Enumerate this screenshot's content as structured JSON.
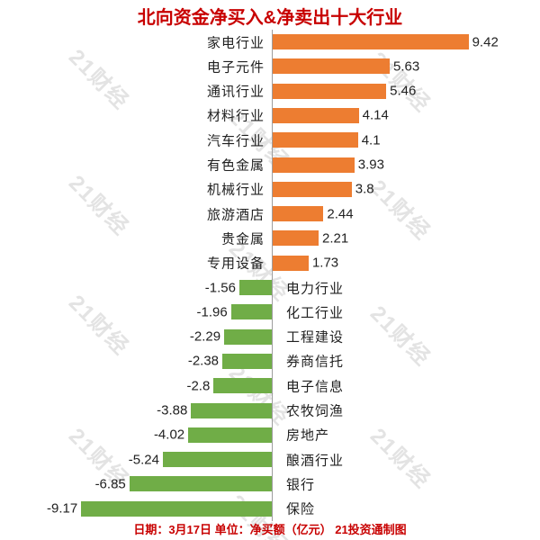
{
  "title": "北向资金净买入&净卖出十大行业",
  "footer": "日期：3月17日 单位：净买额（亿元） 21投资通制图",
  "watermark_text": "21财经",
  "colors": {
    "positive_bar": "#ed7d31",
    "negative_bar": "#70ad47",
    "title_red": "#c80000",
    "axis_gray": "#9e9e9e",
    "label_dark": "#212121",
    "watermark_gray": "#e3e3e3"
  },
  "chart_data": {
    "type": "bar",
    "orientation": "horizontal-diverging",
    "title": "北向资金净买入&净卖出十大行业",
    "xlabel": "净买额（亿元）",
    "ylabel": "",
    "xlim": [
      -9.17,
      9.42
    ],
    "grid": false,
    "legend": "none",
    "categories": [
      "家电行业",
      "电子元件",
      "通讯行业",
      "材料行业",
      "汽车行业",
      "有色金属",
      "机械行业",
      "旅游酒店",
      "贵金属",
      "专用设备",
      "电力行业",
      "化工行业",
      "工程建设",
      "券商信托",
      "电子信息",
      "农牧饲渔",
      "房地产",
      "酿酒行业",
      "银行",
      "保险"
    ],
    "values": [
      9.42,
      5.63,
      5.46,
      4.14,
      4.1,
      3.93,
      3.8,
      2.44,
      2.21,
      1.73,
      -1.56,
      -1.96,
      -2.29,
      -2.38,
      -2.8,
      -3.88,
      -4.02,
      -5.24,
      -6.85,
      -9.17
    ],
    "value_labels": [
      "9.42",
      "5.63",
      "5.46",
      "4.14",
      "4.1",
      "3.93",
      "3.8",
      "2.44",
      "2.21",
      "1.73",
      "-1.56",
      "-1.96",
      "-2.29",
      "-2.38",
      "-2.8",
      "-3.88",
      "-4.02",
      "-5.24",
      "-6.85",
      "-9.17"
    ],
    "positive_series_name": "净买入",
    "negative_series_name": "净卖出"
  }
}
